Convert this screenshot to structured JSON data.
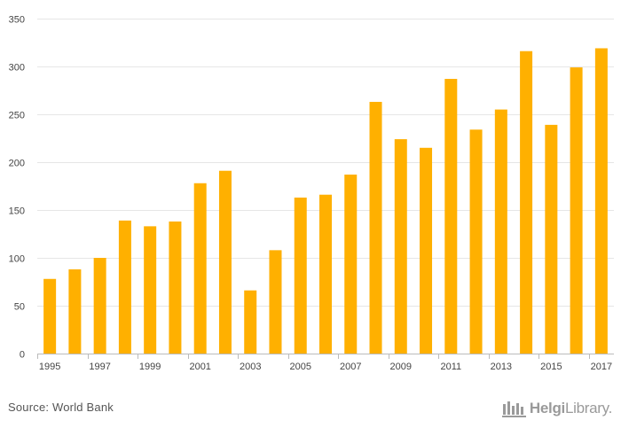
{
  "chart_data": {
    "type": "bar",
    "categories": [
      "1995",
      "1996",
      "1997",
      "1998",
      "1999",
      "2000",
      "2001",
      "2002",
      "2003",
      "2004",
      "2005",
      "2006",
      "2007",
      "2008",
      "2009",
      "2010",
      "2011",
      "2012",
      "2013",
      "2014",
      "2015",
      "2016",
      "2017"
    ],
    "values": [
      78,
      88,
      100,
      139,
      133,
      138,
      178,
      191,
      66,
      108,
      163,
      166,
      187,
      263,
      224,
      215,
      287,
      234,
      255,
      316,
      239,
      299,
      319
    ],
    "x_tick_labels": [
      "1995",
      "1997",
      "1999",
      "2001",
      "2003",
      "2005",
      "2007",
      "2009",
      "2011",
      "2013",
      "2015",
      "2017"
    ],
    "y_ticks": [
      0,
      50,
      100,
      150,
      200,
      250,
      300,
      350
    ],
    "ylim": [
      0,
      350
    ],
    "title": "",
    "xlabel": "",
    "ylabel": "",
    "grid": true,
    "bar_color": "#FFB000"
  },
  "footer": {
    "source": "Source: World Bank",
    "brand_bold": "Helgi",
    "brand_light": "Library."
  },
  "colors": {
    "bar": "#FFB000",
    "grid": "#e6e6e6",
    "axis": "#bbbbbb",
    "text": "#444444",
    "brand": "#9a9a9a"
  }
}
